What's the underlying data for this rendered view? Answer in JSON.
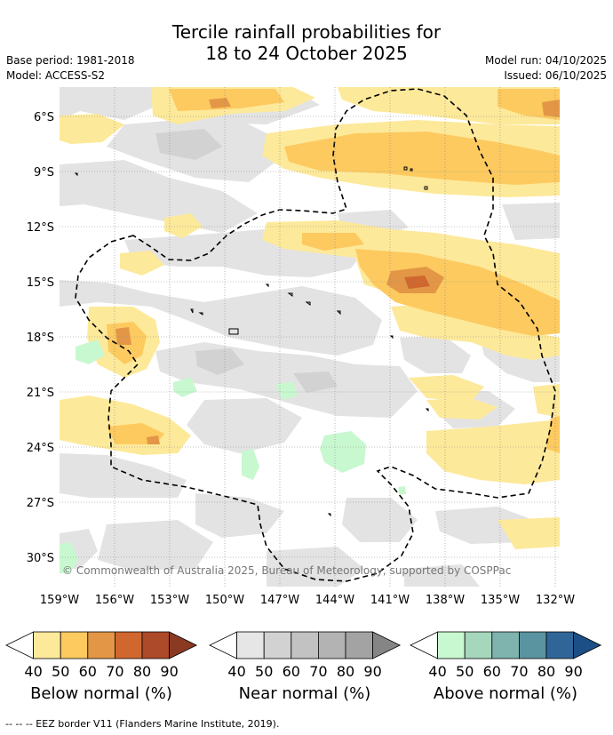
{
  "title": {
    "line1": "Tercile rainfall probabilities for",
    "line2": "18 to 24 October 2025"
  },
  "meta": {
    "base_period": "Base period: 1981-2018",
    "model": "Model: ACCESS-S2",
    "model_run": "Model run: 04/10/2025",
    "issued": "Issued: 06/10/2025"
  },
  "map": {
    "lat_labels": [
      "6°S",
      "9°S",
      "12°S",
      "15°S",
      "18°S",
      "21°S",
      "24°S",
      "27°S",
      "30°S"
    ],
    "lon_labels": [
      "159°W",
      "156°W",
      "153°W",
      "150°W",
      "147°W",
      "144°W",
      "141°W",
      "138°W",
      "135°W",
      "132°W"
    ],
    "copyright": "© Commonwealth of Australia 2025, Bureau of Meteorology, supported by COSPPac"
  },
  "legends": [
    {
      "caption": "Below normal (%)",
      "ticks": [
        "40",
        "50",
        "60",
        "70",
        "80",
        "90"
      ],
      "colors": [
        "#ffffff",
        "#fde99a",
        "#fdca60",
        "#e39746",
        "#d0672f",
        "#ad4a2a",
        "#8b3a22"
      ]
    },
    {
      "caption": "Near normal (%)",
      "ticks": [
        "40",
        "50",
        "60",
        "70",
        "80",
        "90"
      ],
      "colors": [
        "#ffffff",
        "#e6e6e6",
        "#d2d2d2",
        "#c2c2c2",
        "#b3b3b3",
        "#a3a3a3",
        "#858585"
      ]
    },
    {
      "caption": "Above normal (%)",
      "ticks": [
        "40",
        "50",
        "60",
        "70",
        "80",
        "90"
      ],
      "colors": [
        "#ffffff",
        "#c8f8cf",
        "#a6d7bd",
        "#7fb3ad",
        "#5b94a1",
        "#306697",
        "#1c4f86"
      ]
    }
  ],
  "footer": "--  --  -- EEZ border V11 (Flanders Marine Institute, 2019)."
}
